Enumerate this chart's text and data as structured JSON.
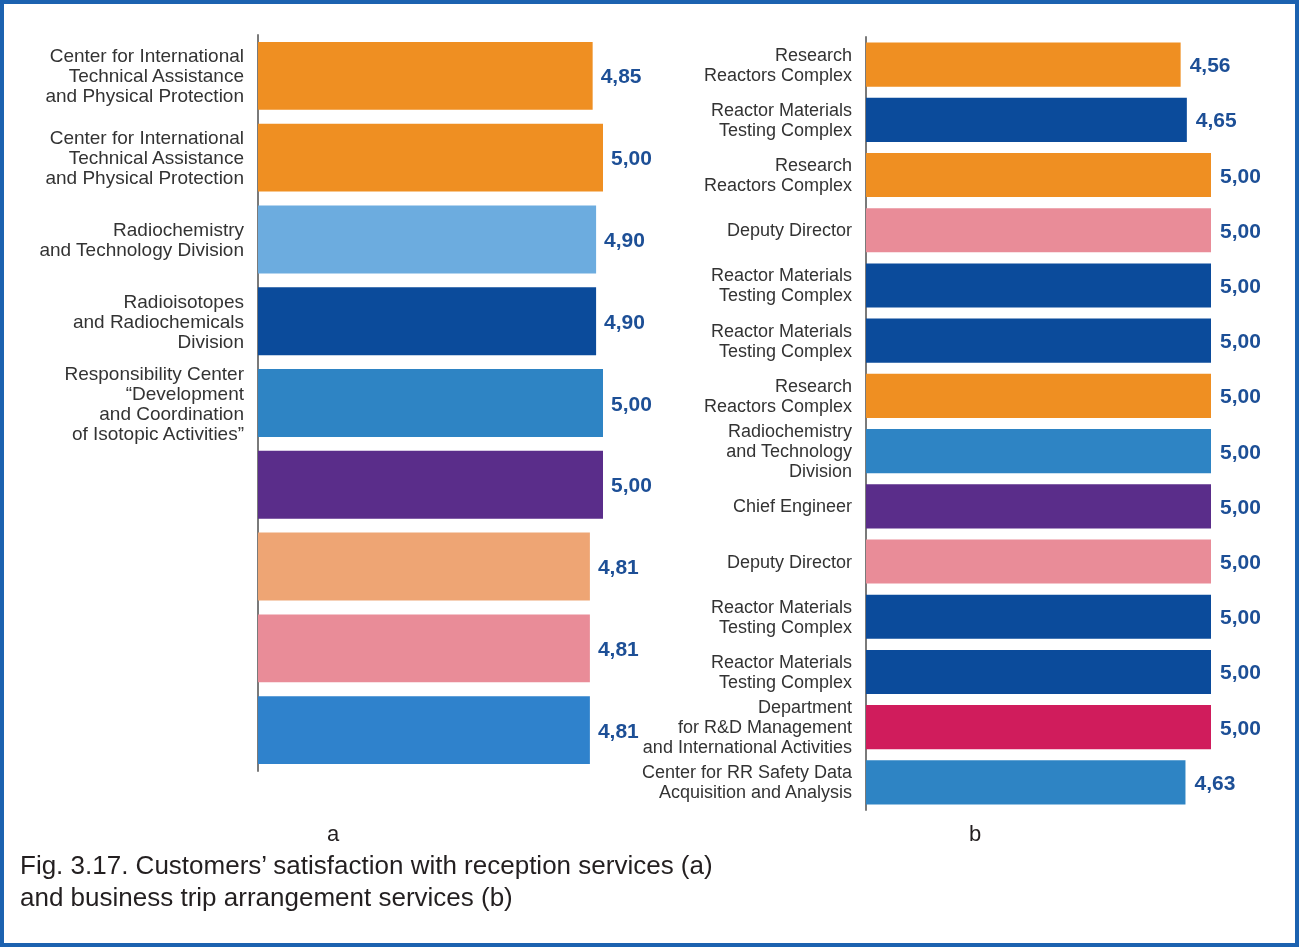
{
  "chart_data": [
    {
      "type": "bar",
      "orientation": "horizontal",
      "xlabel": "a",
      "categories": [
        "Center for International\nTechnical Assistance\nand Physical Protection",
        "Center for International\nTechnical Assistance\nand Physical Protection",
        "Radiochemistry\nand Technology Division",
        "Radioisotopes\nand Radiochemicals\nDivision",
        "Responsibility Center\n“Development\nand Coordination\nof Isotopic Activities”",
        null,
        null,
        null,
        null
      ],
      "values": [
        4.85,
        5.0,
        4.9,
        4.9,
        5.0,
        5.0,
        4.81,
        4.81,
        4.81
      ],
      "value_labels": [
        "4,85",
        "5,00",
        "4,90",
        "4,90",
        "5,00",
        "5,00",
        "4,81",
        "4,81",
        "4,81"
      ],
      "colors": [
        "#ef8f22",
        "#ef8f22",
        "#6cacdf",
        "#0b4b9b",
        "#2e84c4",
        "#5a2d8a",
        "#eea574",
        "#e98c98",
        "#2f82cc"
      ],
      "annotations": [
        "Fig. 3.17. Customers’ satisfaction with reception services (a)\nand business trip arrangement services (b)"
      ]
    },
    {
      "type": "bar",
      "orientation": "horizontal",
      "xlabel": "b",
      "categories": [
        "Research\nReactors Complex",
        "Reactor Materials\nTesting Complex",
        "Research\nReactors Complex",
        "Deputy Director",
        "Reactor Materials\nTesting Complex",
        "Reactor Materials\nTesting Complex",
        "Research\nReactors Complex",
        "Radiochemistry\nand Technology\nDivision",
        "Chief Engineer",
        "Deputy Director",
        "Reactor Materials\nTesting Complex",
        "Reactor Materials\nTesting Complex",
        "Department\nfor R&D Management\nand International Activities",
        "Center for RR Safety Data\nAcquisition and Analysis"
      ],
      "values": [
        4.56,
        4.65,
        5.0,
        5.0,
        5.0,
        5.0,
        5.0,
        5.0,
        5.0,
        5.0,
        5.0,
        5.0,
        5.0,
        4.63
      ],
      "value_labels": [
        "4,56",
        "4,65",
        "5,00",
        "5,00",
        "5,00",
        "5,00",
        "5,00",
        "5,00",
        "5,00",
        "5,00",
        "5,00",
        "5,00",
        "5,00",
        "4,63"
      ],
      "colors": [
        "#ef8f22",
        "#0b4b9b",
        "#ef8f22",
        "#e98c98",
        "#0b4b9b",
        "#0b4b9b",
        "#ef8f22",
        "#2e84c4",
        "#5a2d8a",
        "#e98c98",
        "#0b4b9b",
        "#0b4b9b",
        "#d01c5c",
        "#2e84c4"
      ]
    }
  ]
}
